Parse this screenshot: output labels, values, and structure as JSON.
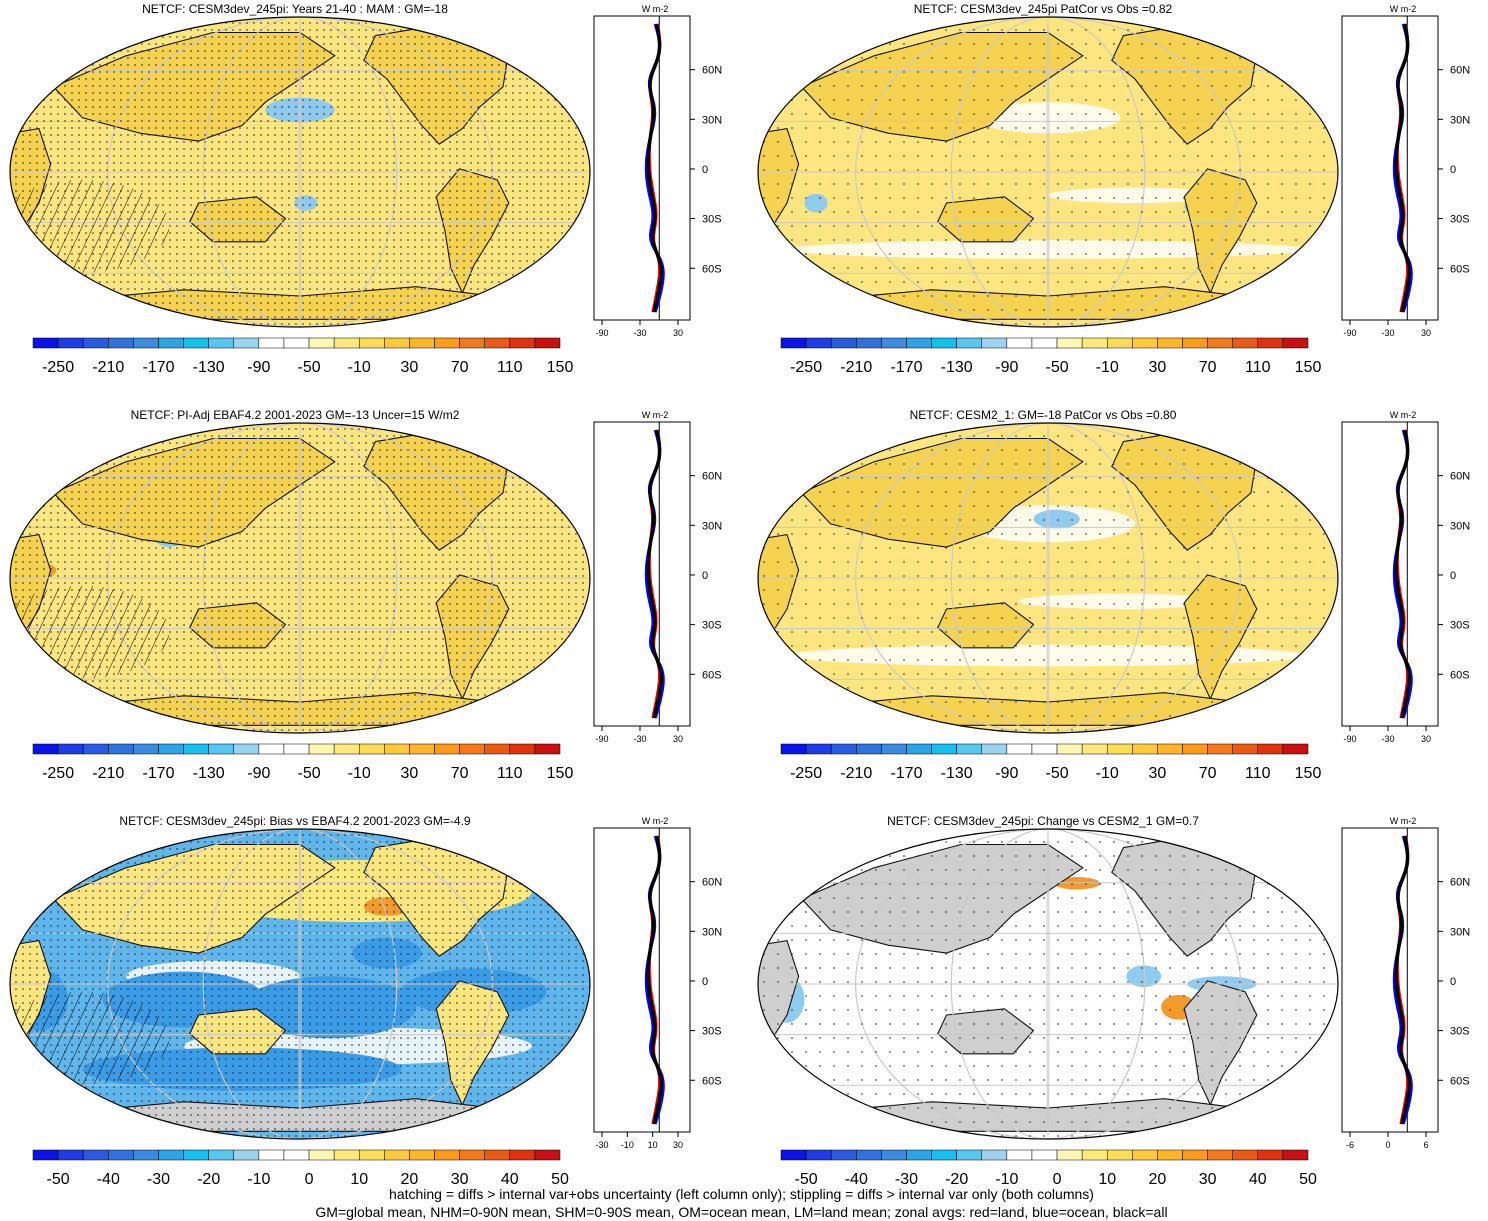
{
  "panels": [
    {
      "title": "NETCF: CESM3dev_245pi: Years 21-40 : MAM : GM=-18",
      "zonal_ticks": [
        "-90",
        "-30",
        "30"
      ],
      "cbar_labels": [
        "-250",
        "-210",
        "-170",
        "-130",
        "-90",
        "-50",
        "-10",
        "30",
        "70",
        "110",
        "150"
      ],
      "cbar": "abs",
      "stipple": "dense",
      "hatch": true
    },
    {
      "title": "NETCF: CESM3dev_245pi PatCor vs Obs =0.82",
      "zonal_ticks": [
        "-90",
        "-30",
        "30"
      ],
      "cbar_labels": [
        "-250",
        "-210",
        "-170",
        "-130",
        "-90",
        "-50",
        "-10",
        "30",
        "70",
        "110",
        "150"
      ],
      "cbar": "abs",
      "stipple": "sparse",
      "hatch": false
    },
    {
      "title": "NETCF: PI-Adj EBAF4.2 2001-2023 GM=-13 Uncer=15 W/m2",
      "zonal_ticks": [
        "-90",
        "-30",
        "30"
      ],
      "cbar_labels": [
        "-250",
        "-210",
        "-170",
        "-130",
        "-90",
        "-50",
        "-10",
        "30",
        "70",
        "110",
        "150"
      ],
      "cbar": "abs",
      "stipple": "dense",
      "hatch": true
    },
    {
      "title": "NETCF: CESM2_1: GM=-18 PatCor vs Obs =0.80",
      "zonal_ticks": [
        "-90",
        "-30",
        "30"
      ],
      "cbar_labels": [
        "-250",
        "-210",
        "-170",
        "-130",
        "-90",
        "-50",
        "-10",
        "30",
        "70",
        "110",
        "150"
      ],
      "cbar": "abs",
      "stipple": "sparse",
      "hatch": false
    },
    {
      "title": "NETCF: CESM3dev_245pi: Bias vs EBAF4.2 2001-2023 GM=-4.9",
      "zonal_ticks": [
        "-30",
        "-10",
        "10",
        "30"
      ],
      "cbar_labels": [
        "-50",
        "-40",
        "-30",
        "-20",
        "-10",
        "0",
        "10",
        "20",
        "30",
        "40",
        "50"
      ],
      "cbar": "diff",
      "stipple": "dense",
      "hatch": true
    },
    {
      "title": "NETCF: CESM3dev_245pi: Change vs CESM2_1 GM=0.7",
      "zonal_ticks": [
        "-6",
        "0",
        "6"
      ],
      "cbar_labels": [
        "-50",
        "-40",
        "-30",
        "-20",
        "-10",
        "0",
        "10",
        "20",
        "30",
        "40",
        "50"
      ],
      "cbar": "diff",
      "stipple": "sparse",
      "hatch": false
    }
  ],
  "zonal_units": "W m-2",
  "lat_labels": [
    "60N",
    "30N",
    "0",
    "30S",
    "60S"
  ],
  "colors": {
    "abs_palette": [
      "#0a14e6",
      "#1e3ce6",
      "#2a5ae0",
      "#2f72de",
      "#3a8ce0",
      "#2aa6e6",
      "#15bff0",
      "#58c7f0",
      "#9bd3f0",
      "#ffffff",
      "#ffffff",
      "#fff7b3",
      "#ffe97a",
      "#ffdc55",
      "#ffca3a",
      "#ffb52a",
      "#ff9a1a",
      "#f4781a",
      "#ea5a14",
      "#e0320f",
      "#c81010"
    ],
    "diff_palette": [
      "#0a14e6",
      "#1e3ce6",
      "#2a5ae0",
      "#2f72de",
      "#3a8ce0",
      "#2aa6e6",
      "#15bff0",
      "#58c7f0",
      "#9bd3f0",
      "#ffffff",
      "#ffffff",
      "#fff7b3",
      "#ffe97a",
      "#ffdc55",
      "#ffca3a",
      "#ffb52a",
      "#ff9a1a",
      "#f4781a",
      "#ea5a14",
      "#e0320f",
      "#c81010"
    ],
    "ocean_abs": "#ffe680",
    "land": "#f5d250",
    "missing": "#cfcfcf",
    "zonal_land": "#ff0000",
    "zonal_ocean": "#0000ff",
    "zonal_all": "#000000"
  },
  "footer": {
    "line1": "hatching = diffs > internal var+obs uncertainty (left column only); stippling = diffs > internal var only (both columns)",
    "line2": "GM=global mean, NHM=0-90N mean, SHM=0-90S mean, OM=ocean mean, LM=land mean; zonal avgs: red=land, blue=ocean, black=all"
  }
}
